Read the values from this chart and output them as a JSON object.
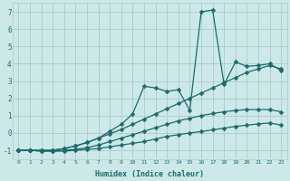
{
  "title": "",
  "xlabel": "Humidex (Indice chaleur)",
  "bg_color": "#cce8e8",
  "grid_color": "#aacccc",
  "line_color": "#1a6b6b",
  "xlim": [
    -0.5,
    23.5
  ],
  "ylim": [
    -1.5,
    7.5
  ],
  "yticks": [
    -1,
    0,
    1,
    2,
    3,
    4,
    5,
    6,
    7
  ],
  "xticks": [
    0,
    1,
    2,
    3,
    4,
    5,
    6,
    7,
    8,
    9,
    10,
    11,
    12,
    13,
    14,
    15,
    16,
    17,
    18,
    19,
    20,
    21,
    22,
    23
  ],
  "curve1_x": [
    0,
    1,
    2,
    3,
    4,
    5,
    6,
    7,
    8,
    9,
    10,
    11,
    12,
    13,
    14,
    15,
    16,
    17,
    18,
    19,
    20,
    21,
    22,
    23
  ],
  "curve1_y": [
    -1.0,
    -1.0,
    -1.05,
    -1.05,
    -1.05,
    -1.0,
    -0.95,
    -0.9,
    -0.8,
    -0.7,
    -0.6,
    -0.5,
    -0.35,
    -0.2,
    -0.1,
    0.0,
    0.08,
    0.18,
    0.28,
    0.38,
    0.45,
    0.52,
    0.58,
    0.45
  ],
  "curve2_x": [
    0,
    1,
    2,
    3,
    4,
    5,
    6,
    7,
    8,
    9,
    10,
    11,
    12,
    13,
    14,
    15,
    16,
    17,
    18,
    19,
    20,
    21,
    22,
    23
  ],
  "curve2_y": [
    -1.0,
    -1.0,
    -1.05,
    -1.05,
    -1.0,
    -0.95,
    -0.85,
    -0.7,
    -0.5,
    -0.3,
    -0.1,
    0.1,
    0.3,
    0.5,
    0.7,
    0.85,
    1.0,
    1.12,
    1.22,
    1.3,
    1.35,
    1.35,
    1.35,
    1.22
  ],
  "curve3_x": [
    0,
    1,
    2,
    3,
    4,
    5,
    6,
    7,
    8,
    9,
    10,
    11,
    12,
    13,
    14,
    15,
    16,
    17,
    18,
    19,
    20,
    21,
    22,
    23
  ],
  "curve3_y": [
    -1.0,
    -1.0,
    -1.0,
    -1.0,
    -0.9,
    -0.75,
    -0.55,
    -0.3,
    -0.05,
    0.2,
    0.5,
    0.8,
    1.1,
    1.4,
    1.7,
    2.0,
    2.3,
    2.6,
    2.9,
    3.2,
    3.5,
    3.7,
    3.9,
    3.7
  ],
  "curve4_x": [
    0,
    1,
    2,
    3,
    4,
    5,
    6,
    7,
    8,
    9,
    10,
    11,
    12,
    13,
    14,
    15,
    16,
    17,
    18,
    19,
    20,
    21,
    22,
    23
  ],
  "curve4_y": [
    -1.0,
    -1.0,
    -1.0,
    -1.0,
    -0.9,
    -0.75,
    -0.55,
    -0.3,
    0.1,
    0.5,
    1.1,
    2.7,
    2.6,
    2.4,
    2.5,
    1.3,
    7.0,
    7.1,
    2.8,
    4.1,
    3.85,
    3.9,
    4.0,
    3.6
  ]
}
